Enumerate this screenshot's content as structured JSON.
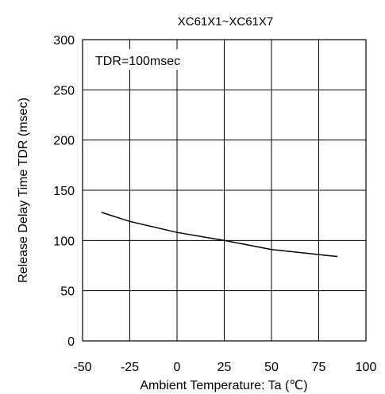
{
  "chart_data": {
    "type": "line",
    "title": "XC61X1~XC61X7",
    "annotation": "TDR=100msec",
    "xlabel": "Ambient Temperature: Ta (℃)",
    "ylabel": "Release Delay Time    TDR (msec)",
    "xlim": [
      -50,
      100
    ],
    "ylim": [
      0,
      300
    ],
    "x_ticks": [
      "-50",
      "-25",
      "0",
      "25",
      "50",
      "75",
      "100"
    ],
    "y_ticks": [
      "0",
      "50",
      "100",
      "150",
      "200",
      "250",
      "300"
    ],
    "grid": true,
    "series": [
      {
        "x": [
          -40,
          -25,
          0,
          25,
          50,
          75,
          85
        ],
        "y": [
          128,
          119,
          108,
          100,
          91,
          86,
          84
        ]
      }
    ]
  }
}
